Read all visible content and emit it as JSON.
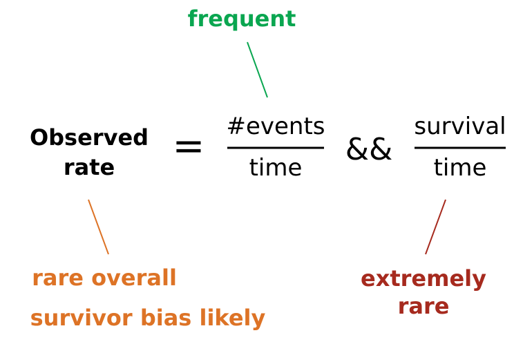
{
  "equation": {
    "lhs": [
      "Observed",
      "rate"
    ],
    "equals": "=",
    "frac1": {
      "numerator": "#events",
      "denominator": "time"
    },
    "connector": "&&",
    "frac2": {
      "numerator": "survival",
      "denominator": "time"
    }
  },
  "annotations": {
    "top": "frequent",
    "bottom_left": [
      "rare overall",
      "survivor bias likely"
    ],
    "bottom_right": [
      "extremely",
      "rare"
    ]
  },
  "colors": {
    "green": "#0aa650",
    "orange": "#dd7326",
    "red": "#a62a1e",
    "text": "#000000"
  }
}
